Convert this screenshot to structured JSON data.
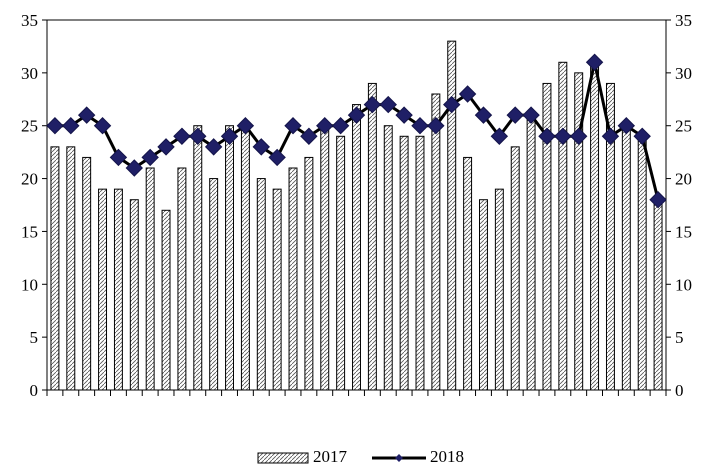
{
  "chart_data": {
    "type": "bar",
    "title": "",
    "xlabel": "",
    "ylabel": "",
    "ylim": [
      0,
      35
    ],
    "y_ticks": [
      0,
      5,
      10,
      15,
      20,
      25,
      30,
      35
    ],
    "secondary_y_axis": true,
    "grid": false,
    "legend_position": "bottom",
    "series": [
      {
        "name": "2017",
        "render": "bar",
        "fill_pattern": "hatched",
        "values": [
          23,
          23,
          22,
          19,
          19,
          18,
          21,
          17,
          21,
          25,
          20,
          25,
          25,
          20,
          19,
          21,
          22,
          25,
          24,
          27,
          29,
          25,
          24,
          24,
          28,
          33,
          22,
          18,
          19,
          23,
          26,
          29,
          31,
          30,
          31,
          29,
          25,
          24,
          18
        ]
      },
      {
        "name": "2018",
        "render": "line",
        "color": "#1f1f66",
        "marker": "diamond",
        "values": [
          25,
          25,
          26,
          25,
          22,
          21,
          22,
          23,
          24,
          24,
          23,
          24,
          25,
          23,
          22,
          25,
          24,
          25,
          25,
          26,
          27,
          27,
          26,
          25,
          25,
          27,
          28,
          26,
          24,
          26,
          26,
          24,
          24,
          24,
          31,
          24,
          25,
          24,
          18
        ]
      }
    ]
  }
}
